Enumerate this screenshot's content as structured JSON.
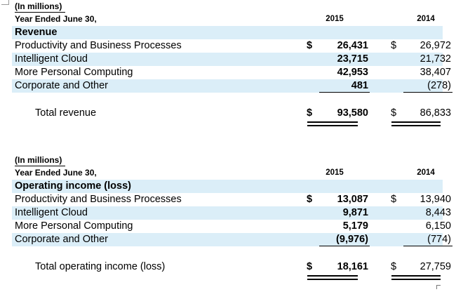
{
  "revenue": {
    "units": "(In millions)",
    "period": "Year Ended June 30,",
    "years": [
      "2015",
      "2014"
    ],
    "section": "Revenue",
    "rows": [
      {
        "label": "Productivity and Business Processes",
        "v2015": "26,431",
        "v2014": "26,972",
        "cur2015": "$",
        "cur2014": "$"
      },
      {
        "label": "Intelligent Cloud",
        "v2015": "23,715",
        "v2014": "21,732"
      },
      {
        "label": "More Personal Computing",
        "v2015": "42,953",
        "v2014": "38,407"
      },
      {
        "label": "Corporate and Other",
        "v2015": "481",
        "v2014": "(278)"
      }
    ],
    "total": {
      "label": "Total revenue",
      "v2015": "93,580",
      "v2014": "86,833",
      "cur2015": "$",
      "cur2014": "$"
    }
  },
  "operating": {
    "units": "(In millions)",
    "period": "Year Ended June 30,",
    "years": [
      "2015",
      "2014"
    ],
    "section": "Operating income (loss)",
    "rows": [
      {
        "label": "Productivity and Business Processes",
        "v2015": "13,087",
        "v2014": "13,940",
        "cur2015": "$",
        "cur2014": "$"
      },
      {
        "label": "Intelligent Cloud",
        "v2015": "9,871",
        "v2014": "8,443"
      },
      {
        "label": "More Personal Computing",
        "v2015": "5,179",
        "v2014": "6,150"
      },
      {
        "label": "Corporate and Other",
        "v2015": "(9,976)",
        "v2014": "(774)"
      }
    ],
    "total": {
      "label": "Total operating income (loss)",
      "v2015": "18,161",
      "v2014": "27,759",
      "cur2015": "$",
      "cur2014": "$"
    }
  }
}
